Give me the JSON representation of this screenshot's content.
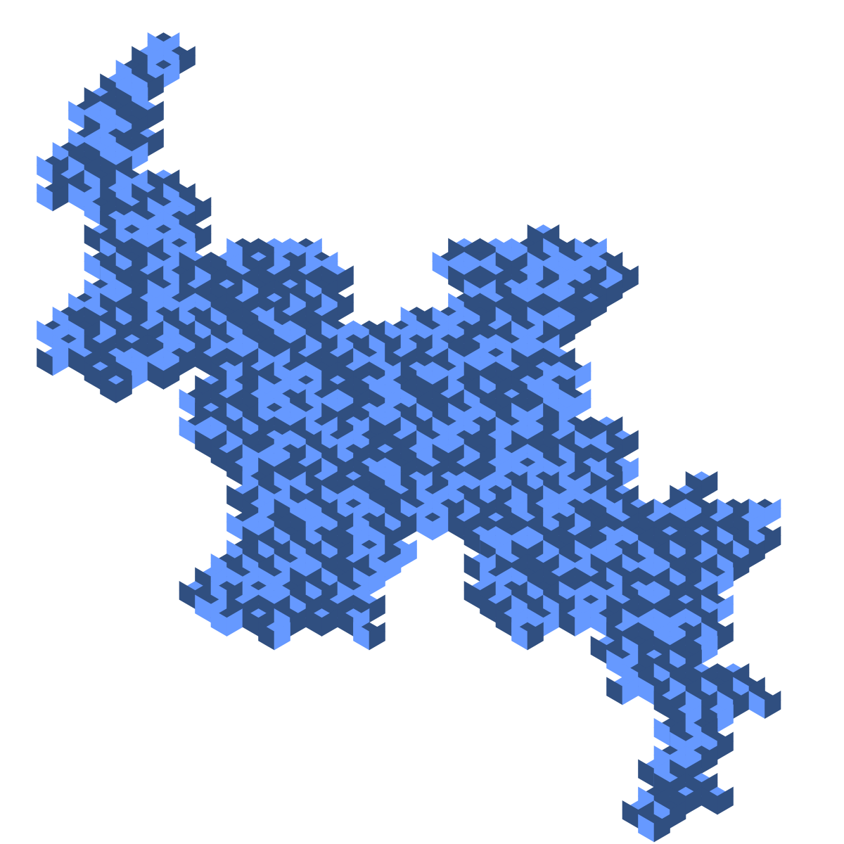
{
  "figure": {
    "kind": "isometric rhombus tiling of a self-similar (fractal-like) region",
    "colors": {
      "background": "#ffffff",
      "light_face": "#6699ff",
      "dark_face": "#304f80"
    },
    "text": ""
  }
}
